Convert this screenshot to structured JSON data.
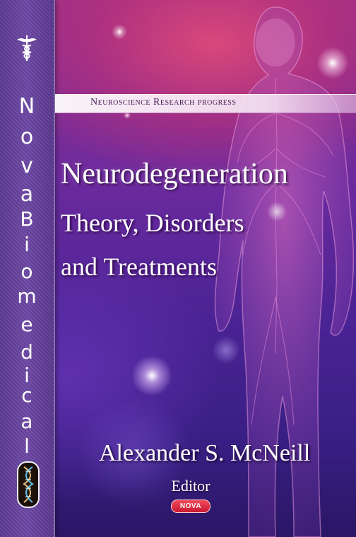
{
  "spine": {
    "letters": [
      "N",
      "o",
      "v",
      "a",
      "B",
      "i",
      "o",
      "m",
      "e",
      "d",
      "i",
      "c",
      "a",
      "l"
    ],
    "icon_top": "caduceus-icon",
    "icon_bottom": "dna-icon"
  },
  "series": {
    "label": "Neuroscience Research progress"
  },
  "title": {
    "main": "Neurodegeneration",
    "line1": "Theory, Disorders",
    "line2": "and Treatments"
  },
  "author": {
    "name": "Alexander S. McNeill",
    "role": "Editor"
  },
  "publisher": {
    "label": "NOVA"
  },
  "colors": {
    "background_top": "#9a2f8a",
    "background_bottom": "#2a1766",
    "spine": "#6d48a4",
    "badge": "#c81830",
    "series_text": "#4a1a5a"
  }
}
